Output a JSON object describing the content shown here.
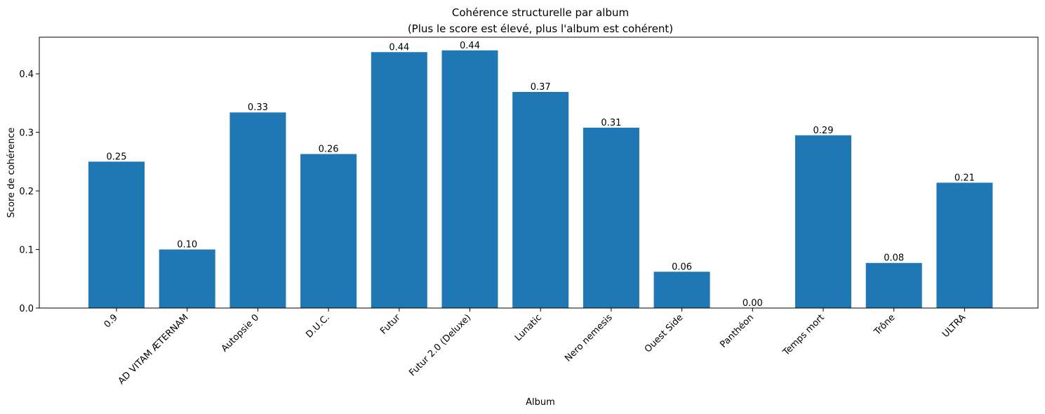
{
  "chart_data": {
    "type": "bar",
    "title": "Cohérence structurelle par album",
    "subtitle": "(Plus le score est élevé, plus l'album est cohérent)",
    "xlabel": "Album",
    "ylabel": "Score de cohérence",
    "categories": [
      "0.9",
      "AD VITAM ÆTERNAM",
      "Autopsie 0",
      "D.U.C.",
      "Futur",
      "Futur 2.0 (Deluxe)",
      "Lunatic",
      "Nero nemesis",
      "Ouest Side",
      "Panthéon",
      "Temps mort",
      "Trône",
      "ULTRA"
    ],
    "values": [
      0.25,
      0.1,
      0.334,
      0.263,
      0.437,
      0.44,
      0.369,
      0.308,
      0.062,
      0.0,
      0.295,
      0.077,
      0.214
    ],
    "value_labels": [
      "0.25",
      "0.10",
      "0.33",
      "0.26",
      "0.44",
      "0.44",
      "0.37",
      "0.31",
      "0.06",
      "0.00",
      "0.29",
      "0.08",
      "0.21"
    ],
    "ylim": [
      0,
      0.4625
    ],
    "yticks": [
      0.0,
      0.1,
      0.2,
      0.3,
      0.4
    ],
    "ytick_labels": [
      "0.0",
      "0.1",
      "0.2",
      "0.3",
      "0.4"
    ],
    "bar_color": "#1f77b4",
    "grid": false,
    "legend": "none"
  }
}
